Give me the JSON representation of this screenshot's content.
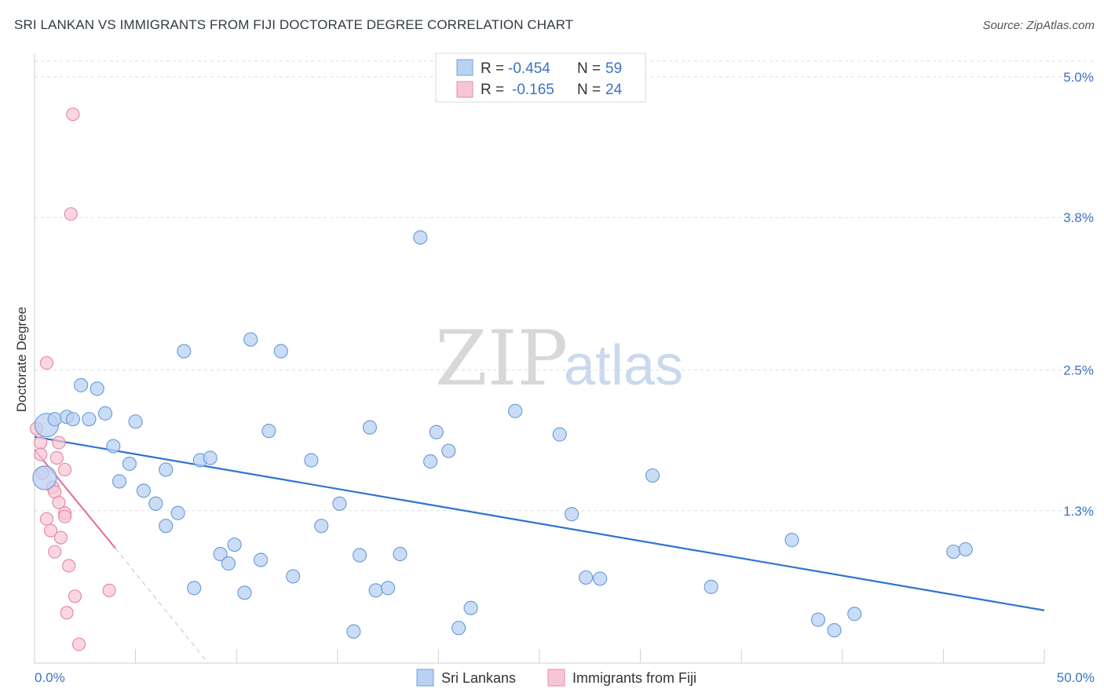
{
  "header": {
    "title": "SRI LANKAN VS IMMIGRANTS FROM FIJI DOCTORATE DEGREE CORRELATION CHART",
    "source": "Source: ZipAtlas.com"
  },
  "watermark": {
    "zip": "ZIP",
    "atlas": "atlas"
  },
  "legend": {
    "r_label": "R =",
    "n_label": "N =",
    "series": [
      {
        "r": "-0.454",
        "n": "59"
      },
      {
        "r": "-0.165",
        "n": "24"
      }
    ]
  },
  "colors": {
    "blue_fill": "#b9d1f3",
    "blue_stroke": "#6f9fdb",
    "blue_line": "#2f73cf",
    "pink_fill": "#f7c6d4",
    "pink_stroke": "#e88aa7",
    "pink_line": "#e8739b",
    "grid": "#dddddd",
    "axis_text": "#3b73c4"
  },
  "chart_data": {
    "type": "scatter",
    "title": "SRI LANKAN VS IMMIGRANTS FROM FIJI DOCTORATE DEGREE CORRELATION CHART",
    "xlabel": "",
    "ylabel": "Doctorate Degree",
    "xlim": [
      0,
      50
    ],
    "ylim": [
      0,
      5.2
    ],
    "x_tick_labels": [
      "0.0%",
      "50.0%"
    ],
    "y_ticks": [
      1.3,
      2.5,
      3.8,
      5.0
    ],
    "y_tick_labels": [
      "1.3%",
      "2.5%",
      "3.8%",
      "5.0%"
    ],
    "grid": true,
    "legend_position": "top-center",
    "series": [
      {
        "name": "Sri Lankans",
        "points": [
          [
            0.6,
            2.03
          ],
          [
            1.0,
            2.08
          ],
          [
            1.6,
            2.1
          ],
          [
            1.9,
            2.08
          ],
          [
            2.3,
            2.37
          ],
          [
            2.7,
            2.08
          ],
          [
            3.1,
            2.34
          ],
          [
            3.5,
            2.13
          ],
          [
            3.9,
            1.85
          ],
          [
            4.2,
            1.55
          ],
          [
            4.7,
            1.7
          ],
          [
            5.0,
            2.06
          ],
          [
            5.4,
            1.47
          ],
          [
            6.0,
            1.36
          ],
          [
            6.5,
            1.17
          ],
          [
            6.5,
            1.65
          ],
          [
            7.1,
            1.28
          ],
          [
            7.4,
            2.66
          ],
          [
            7.9,
            0.64
          ],
          [
            8.2,
            1.73
          ],
          [
            8.7,
            1.75
          ],
          [
            9.2,
            0.93
          ],
          [
            9.6,
            0.85
          ],
          [
            9.9,
            1.01
          ],
          [
            10.4,
            0.6
          ],
          [
            10.7,
            2.76
          ],
          [
            11.2,
            0.88
          ],
          [
            11.6,
            1.98
          ],
          [
            12.2,
            2.66
          ],
          [
            12.8,
            0.74
          ],
          [
            13.7,
            1.73
          ],
          [
            14.2,
            1.17
          ],
          [
            15.1,
            1.36
          ],
          [
            15.8,
            0.27
          ],
          [
            16.1,
            0.92
          ],
          [
            16.6,
            2.01
          ],
          [
            16.9,
            0.62
          ],
          [
            17.5,
            0.64
          ],
          [
            18.1,
            0.93
          ],
          [
            19.1,
            3.63
          ],
          [
            19.6,
            1.72
          ],
          [
            19.9,
            1.97
          ],
          [
            20.5,
            1.81
          ],
          [
            21.0,
            0.3
          ],
          [
            21.6,
            0.47
          ],
          [
            23.8,
            2.15
          ],
          [
            26.0,
            1.95
          ],
          [
            26.6,
            1.27
          ],
          [
            27.3,
            0.73
          ],
          [
            28.0,
            0.72
          ],
          [
            30.6,
            1.6
          ],
          [
            33.5,
            0.65
          ],
          [
            37.5,
            1.05
          ],
          [
            38.8,
            0.37
          ],
          [
            39.6,
            0.28
          ],
          [
            40.6,
            0.42
          ],
          [
            45.5,
            0.95
          ],
          [
            46.1,
            0.97
          ],
          [
            0.5,
            1.58
          ]
        ],
        "trend": {
          "x": [
            0,
            50
          ],
          "y": [
            1.93,
            0.45
          ]
        }
      },
      {
        "name": "Immigrants from Fiji",
        "points": [
          [
            1.9,
            4.68
          ],
          [
            1.8,
            3.83
          ],
          [
            0.6,
            2.56
          ],
          [
            0.1,
            2.0
          ],
          [
            0.3,
            1.88
          ],
          [
            1.2,
            1.88
          ],
          [
            0.3,
            1.78
          ],
          [
            1.1,
            1.75
          ],
          [
            1.5,
            1.65
          ],
          [
            0.4,
            1.62
          ],
          [
            0.9,
            1.5
          ],
          [
            1.0,
            1.46
          ],
          [
            1.2,
            1.37
          ],
          [
            1.5,
            1.28
          ],
          [
            1.5,
            1.25
          ],
          [
            0.6,
            1.23
          ],
          [
            0.8,
            1.13
          ],
          [
            1.3,
            1.07
          ],
          [
            1.0,
            0.95
          ],
          [
            1.7,
            0.83
          ],
          [
            2.0,
            0.57
          ],
          [
            3.7,
            0.62
          ],
          [
            1.6,
            0.43
          ],
          [
            2.2,
            0.16
          ]
        ],
        "trend": {
          "x": [
            0,
            4
          ],
          "y": [
            1.82,
            0.98
          ]
        },
        "trend_extension": {
          "x": [
            4,
            8.6
          ],
          "y": [
            0.98,
            0.0
          ]
        }
      }
    ]
  },
  "bottom_legend": [
    "Sri Lankans",
    "Immigrants from Fiji"
  ]
}
